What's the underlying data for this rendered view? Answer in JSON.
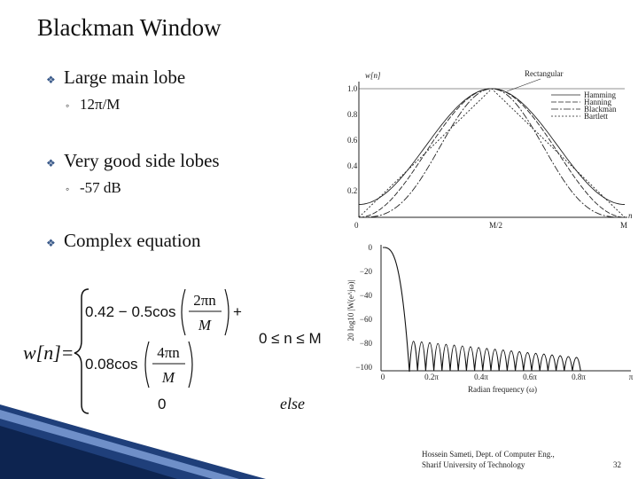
{
  "title": "Blackman Window",
  "bullets": [
    {
      "text": "Large main lobe",
      "sub": "12π/M"
    },
    {
      "text": "Very good side lobes",
      "sub": "-57 dB"
    },
    {
      "text": "Complex equation"
    }
  ],
  "equation": {
    "lhs": "w[n]",
    "equals": "=",
    "term1": "0.42 − 0.5cos",
    "frac1_num": "2πn",
    "frac1_den": "M",
    "plus": "+",
    "term2": "0.08cos",
    "frac2_num": "4πn",
    "frac2_den": "M",
    "condition": "0 ≤ n ≤ M",
    "zero": "0",
    "otherwise": "else"
  },
  "figure_top": {
    "y_label": "w[n]",
    "annotation": "Rectangular",
    "yticks": [
      "1.0",
      "0.8",
      "0.6",
      "0.4",
      "0.2"
    ],
    "xticks": [
      "0",
      "M/2",
      "M"
    ],
    "x_label": "n",
    "legend": [
      "Hamming",
      "Hanning",
      "Blackman",
      "Bartlett"
    ]
  },
  "figure_bottom": {
    "y_label": "20 log10 |W(e^jω)|",
    "yticks": [
      "0",
      "−20",
      "−40",
      "−60",
      "−80",
      "−100"
    ],
    "xticks": [
      "0",
      "0.2π",
      "0.4π",
      "0.6π",
      "0.8π",
      "π"
    ],
    "x_label": "Radian frequency (ω)"
  },
  "footer": {
    "credit": [
      "Hossein Sameti, Dept. of Computer Eng.,",
      "Sharif University of Technology"
    ],
    "page": "32"
  }
}
